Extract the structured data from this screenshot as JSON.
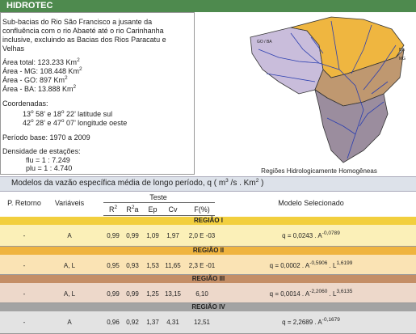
{
  "header": {
    "title": "HIDROTEC"
  },
  "info": {
    "description": [
      "Sub-bacias do Rio São Francisco a jusante da",
      "confluência com o rio Abaeté até o rio Carinhanha",
      "inclusive, excluindo as Bacias dos Rios Paracatu e",
      "Velhas"
    ],
    "areas": [
      [
        {
          "text": "Área total: 123.233 Km"
        },
        {
          "sup": "2"
        }
      ],
      [
        {
          "text": "Área - MG: 108.448 Km"
        },
        {
          "sup": "2"
        }
      ],
      [
        {
          "text": "Área - GO: 897 Km"
        },
        {
          "sup": "2"
        }
      ],
      [
        {
          "text": "Área - BA: 13.888 Km"
        },
        {
          "sup": "2"
        }
      ]
    ],
    "coordinates_label": "Coordenadas:",
    "coordinates": [
      [
        {
          "text": "13"
        },
        {
          "sup": "o"
        },
        {
          "text": " 58’ e 18"
        },
        {
          "sup": "o"
        },
        {
          "text": " 22’  latitude sul"
        }
      ],
      [
        {
          "text": "42"
        },
        {
          "sup": "o"
        },
        {
          "text": " 28’ e 47"
        },
        {
          "sup": "o"
        },
        {
          "text": " 07’  longitude oeste"
        }
      ]
    ],
    "period": "Período base:  1970  a  2009",
    "density_label": "Densidade de estações:",
    "density": [
      "flu = 1 : 7.249",
      "plu = 1 : 4.740"
    ]
  },
  "map": {
    "labels": [
      "GO / BA",
      "BA",
      "MG"
    ],
    "caption": "Regiões Hidrologicamente Homogêneas"
  },
  "models": {
    "title": [
      {
        "text": "Modelos da vazão específica média de longo período, q ( m"
      },
      {
        "sup": "3"
      },
      {
        "text": " /s . Km"
      },
      {
        "sup": "2"
      },
      {
        "text": " )"
      }
    ],
    "columns": {
      "return": "P. Retorno",
      "variables": "Variáveis",
      "test": "Teste",
      "stats": [
        [
          {
            "text": "R"
          },
          {
            "sup": "2"
          }
        ],
        [
          {
            "text": "R"
          },
          {
            "sup": "2"
          },
          {
            "text": "a"
          }
        ],
        [
          {
            "text": "Ep"
          }
        ],
        [
          {
            "text": "Cv"
          }
        ],
        [
          {
            "text": "F(%)"
          }
        ]
      ],
      "model": "Modelo Selecionado"
    },
    "regions": [
      {
        "name": "REGIÃO I",
        "return": "-",
        "variables": "A",
        "stats": [
          "0,99",
          "0,99",
          "1,09",
          "1,97",
          "2,0 E -03"
        ],
        "model": [
          {
            "text": "q =  0,0243 . A"
          },
          {
            "sup": "-0,0789"
          }
        ]
      },
      {
        "name": "REGIÃO II",
        "return": "-",
        "variables": "A, L",
        "stats": [
          "0,95",
          "0,93",
          "1,53",
          "11,65",
          "2,3 E -01"
        ],
        "model": [
          {
            "text": "q =  0,0002 . A"
          },
          {
            "sup": "-0,5906"
          },
          {
            "text": " . L"
          },
          {
            "sup": "1,6199"
          }
        ]
      },
      {
        "name": "REGIÃO III",
        "return": "-",
        "variables": "A, L",
        "stats": [
          "0,99",
          "0,99",
          "1,25",
          "13,15",
          "6,10"
        ],
        "model": [
          {
            "text": "q =  0,0014 . A"
          },
          {
            "sup": "-2,2060"
          },
          {
            "text": " . L"
          },
          {
            "sup": "3,6135"
          }
        ]
      },
      {
        "name": "REGIÃO IV",
        "return": "-",
        "variables": "A",
        "stats": [
          "0,96",
          "0,92",
          "1,37",
          "4,31",
          "12,51"
        ],
        "model": [
          {
            "text": "q =  2,2689 . A"
          },
          {
            "sup": "-0,1679"
          }
        ]
      }
    ]
  }
}
